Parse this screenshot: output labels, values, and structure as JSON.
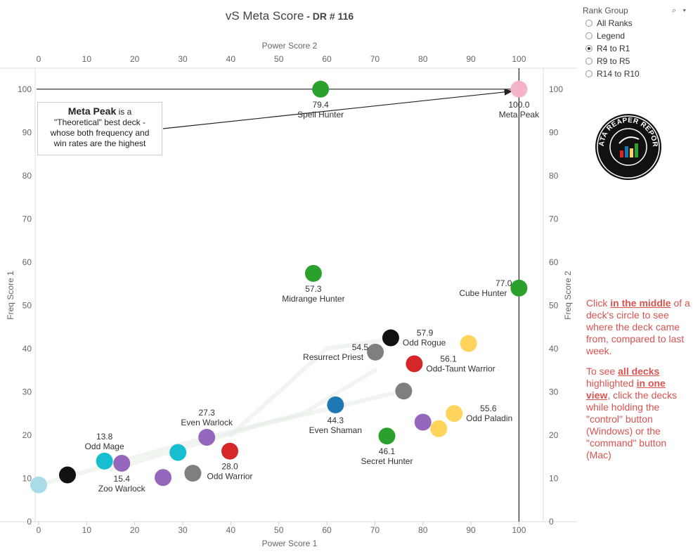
{
  "title": {
    "main": "vS Meta Score",
    "sub": " - DR # 116"
  },
  "sidebar": {
    "label": "Rank Group",
    "tools": "⌕ ▾",
    "options": [
      "All Ranks",
      "Legend",
      "R4 to R1",
      "R9 to R5",
      "R14 to R10"
    ],
    "selected": "R4 to R1"
  },
  "callout": {
    "bold": "Meta Peak",
    "rest1": " is a",
    "line2": "\"Theoretical\" best deck -",
    "line3": "whose both frequency and",
    "line4": "win rates are the highest"
  },
  "instructions": {
    "p1_a": "Click ",
    "p1_link": "in the middle",
    "p1_b": " of a deck's circle to see where the deck came from, compared to last week.",
    "p2_a": "To see ",
    "p2_link1": "all decks ",
    "p2_b": " highlighted ",
    "p2_link2": "in one view",
    "p2_c": ", click the decks while holding the \"control\" button (Windows) or the \"command\" button (Mac)"
  },
  "logo_text": "DATA REAPER REPORT",
  "chart_data": {
    "type": "scatter",
    "title": "vS Meta Score - DR # 116",
    "xlabel": "Power Score 1",
    "x2label": "Power Score 2",
    "ylabel": "Freq Score 1",
    "y2label": "Freq Score 2",
    "xlim": [
      0,
      105
    ],
    "ylim": [
      0,
      105
    ],
    "xticks": [
      0,
      10,
      20,
      30,
      40,
      50,
      60,
      70,
      80,
      90,
      100
    ],
    "yticks": [
      0,
      10,
      20,
      30,
      40,
      50,
      60,
      70,
      80,
      90,
      100
    ],
    "reference_lines": {
      "x": 100,
      "y": 100
    },
    "colors": {
      "hunter": "#2ca02c",
      "peak": "#f5b3c8",
      "warlock": "#9467bd",
      "mage": "#17becf",
      "warrior": "#d62728",
      "rogue": "#111111",
      "priest": "#7f7f7f",
      "paladin": "#ffd45c",
      "shaman": "#1f77b4",
      "druid": "#aadce8"
    },
    "points": [
      {
        "name": "Spell Hunter",
        "score": "79.4",
        "x": 58.7,
        "y": 100,
        "cls": "hunter",
        "lp": "below"
      },
      {
        "name": "Meta Peak",
        "score": "100.0",
        "x": 100,
        "y": 100,
        "cls": "peak",
        "lp": "below"
      },
      {
        "name": "Midrange Hunter",
        "score": "57.3",
        "x": 57.2,
        "y": 57.4,
        "cls": "hunter",
        "lp": "below"
      },
      {
        "name": "Cube Hunter",
        "score": "77.0",
        "x": 100,
        "y": 54,
        "cls": "hunter",
        "lp": "left"
      },
      {
        "name": "Odd Rogue",
        "score": "57.9",
        "x": 73.3,
        "y": 42.5,
        "cls": "rogue",
        "lp": "right"
      },
      {
        "name": "",
        "score": "",
        "x": 89.5,
        "y": 41.2,
        "cls": "paladin",
        "lp": "none"
      },
      {
        "name": "Resurrect Priest",
        "score": "54.5",
        "x": 70.1,
        "y": 39.2,
        "cls": "priest",
        "lp": "left"
      },
      {
        "name": "Odd-Taunt Warrior",
        "score": "56.1",
        "x": 78.2,
        "y": 36.5,
        "cls": "warrior",
        "lp": "right"
      },
      {
        "name": "",
        "score": "",
        "x": 76,
        "y": 30.2,
        "cls": "priest",
        "lp": "none"
      },
      {
        "name": "Even Shaman",
        "score": "44.3",
        "x": 61.8,
        "y": 27,
        "cls": "shaman",
        "lp": "below"
      },
      {
        "name": "Odd Paladin",
        "score": "55.6",
        "x": 86.5,
        "y": 25,
        "cls": "paladin",
        "lp": "right"
      },
      {
        "name": "",
        "score": "",
        "x": 80,
        "y": 23,
        "cls": "warlock",
        "lp": "none"
      },
      {
        "name": "",
        "score": "",
        "x": 83.3,
        "y": 21.5,
        "cls": "paladin",
        "lp": "none"
      },
      {
        "name": "Secret Hunter",
        "score": "46.1",
        "x": 72.5,
        "y": 19.8,
        "cls": "hunter",
        "lp": "below"
      },
      {
        "name": "Even Warlock",
        "score": "27.3",
        "x": 35,
        "y": 19.5,
        "cls": "warlock",
        "lp": "above"
      },
      {
        "name": "Odd Warrior",
        "score": "28.0",
        "x": 39.8,
        "y": 16.3,
        "cls": "warrior",
        "lp": "below"
      },
      {
        "name": "",
        "score": "",
        "x": 29,
        "y": 16,
        "cls": "mage",
        "lp": "none"
      },
      {
        "name": "Odd Mage",
        "score": "13.8",
        "x": 13.7,
        "y": 14,
        "cls": "mage",
        "lp": "above"
      },
      {
        "name": "Zoo Warlock",
        "score": "15.4",
        "x": 17.3,
        "y": 13.5,
        "cls": "warlock",
        "lp": "below"
      },
      {
        "name": "",
        "score": "",
        "x": 32.1,
        "y": 11.2,
        "cls": "priest",
        "lp": "none"
      },
      {
        "name": "",
        "score": "",
        "x": 25.9,
        "y": 10.2,
        "cls": "warlock",
        "lp": "none"
      },
      {
        "name": "",
        "score": "",
        "x": 6,
        "y": 10.8,
        "cls": "rogue",
        "lp": "none"
      },
      {
        "name": "",
        "score": "",
        "x": 0,
        "y": 8.5,
        "cls": "druid",
        "lp": "none"
      }
    ]
  }
}
